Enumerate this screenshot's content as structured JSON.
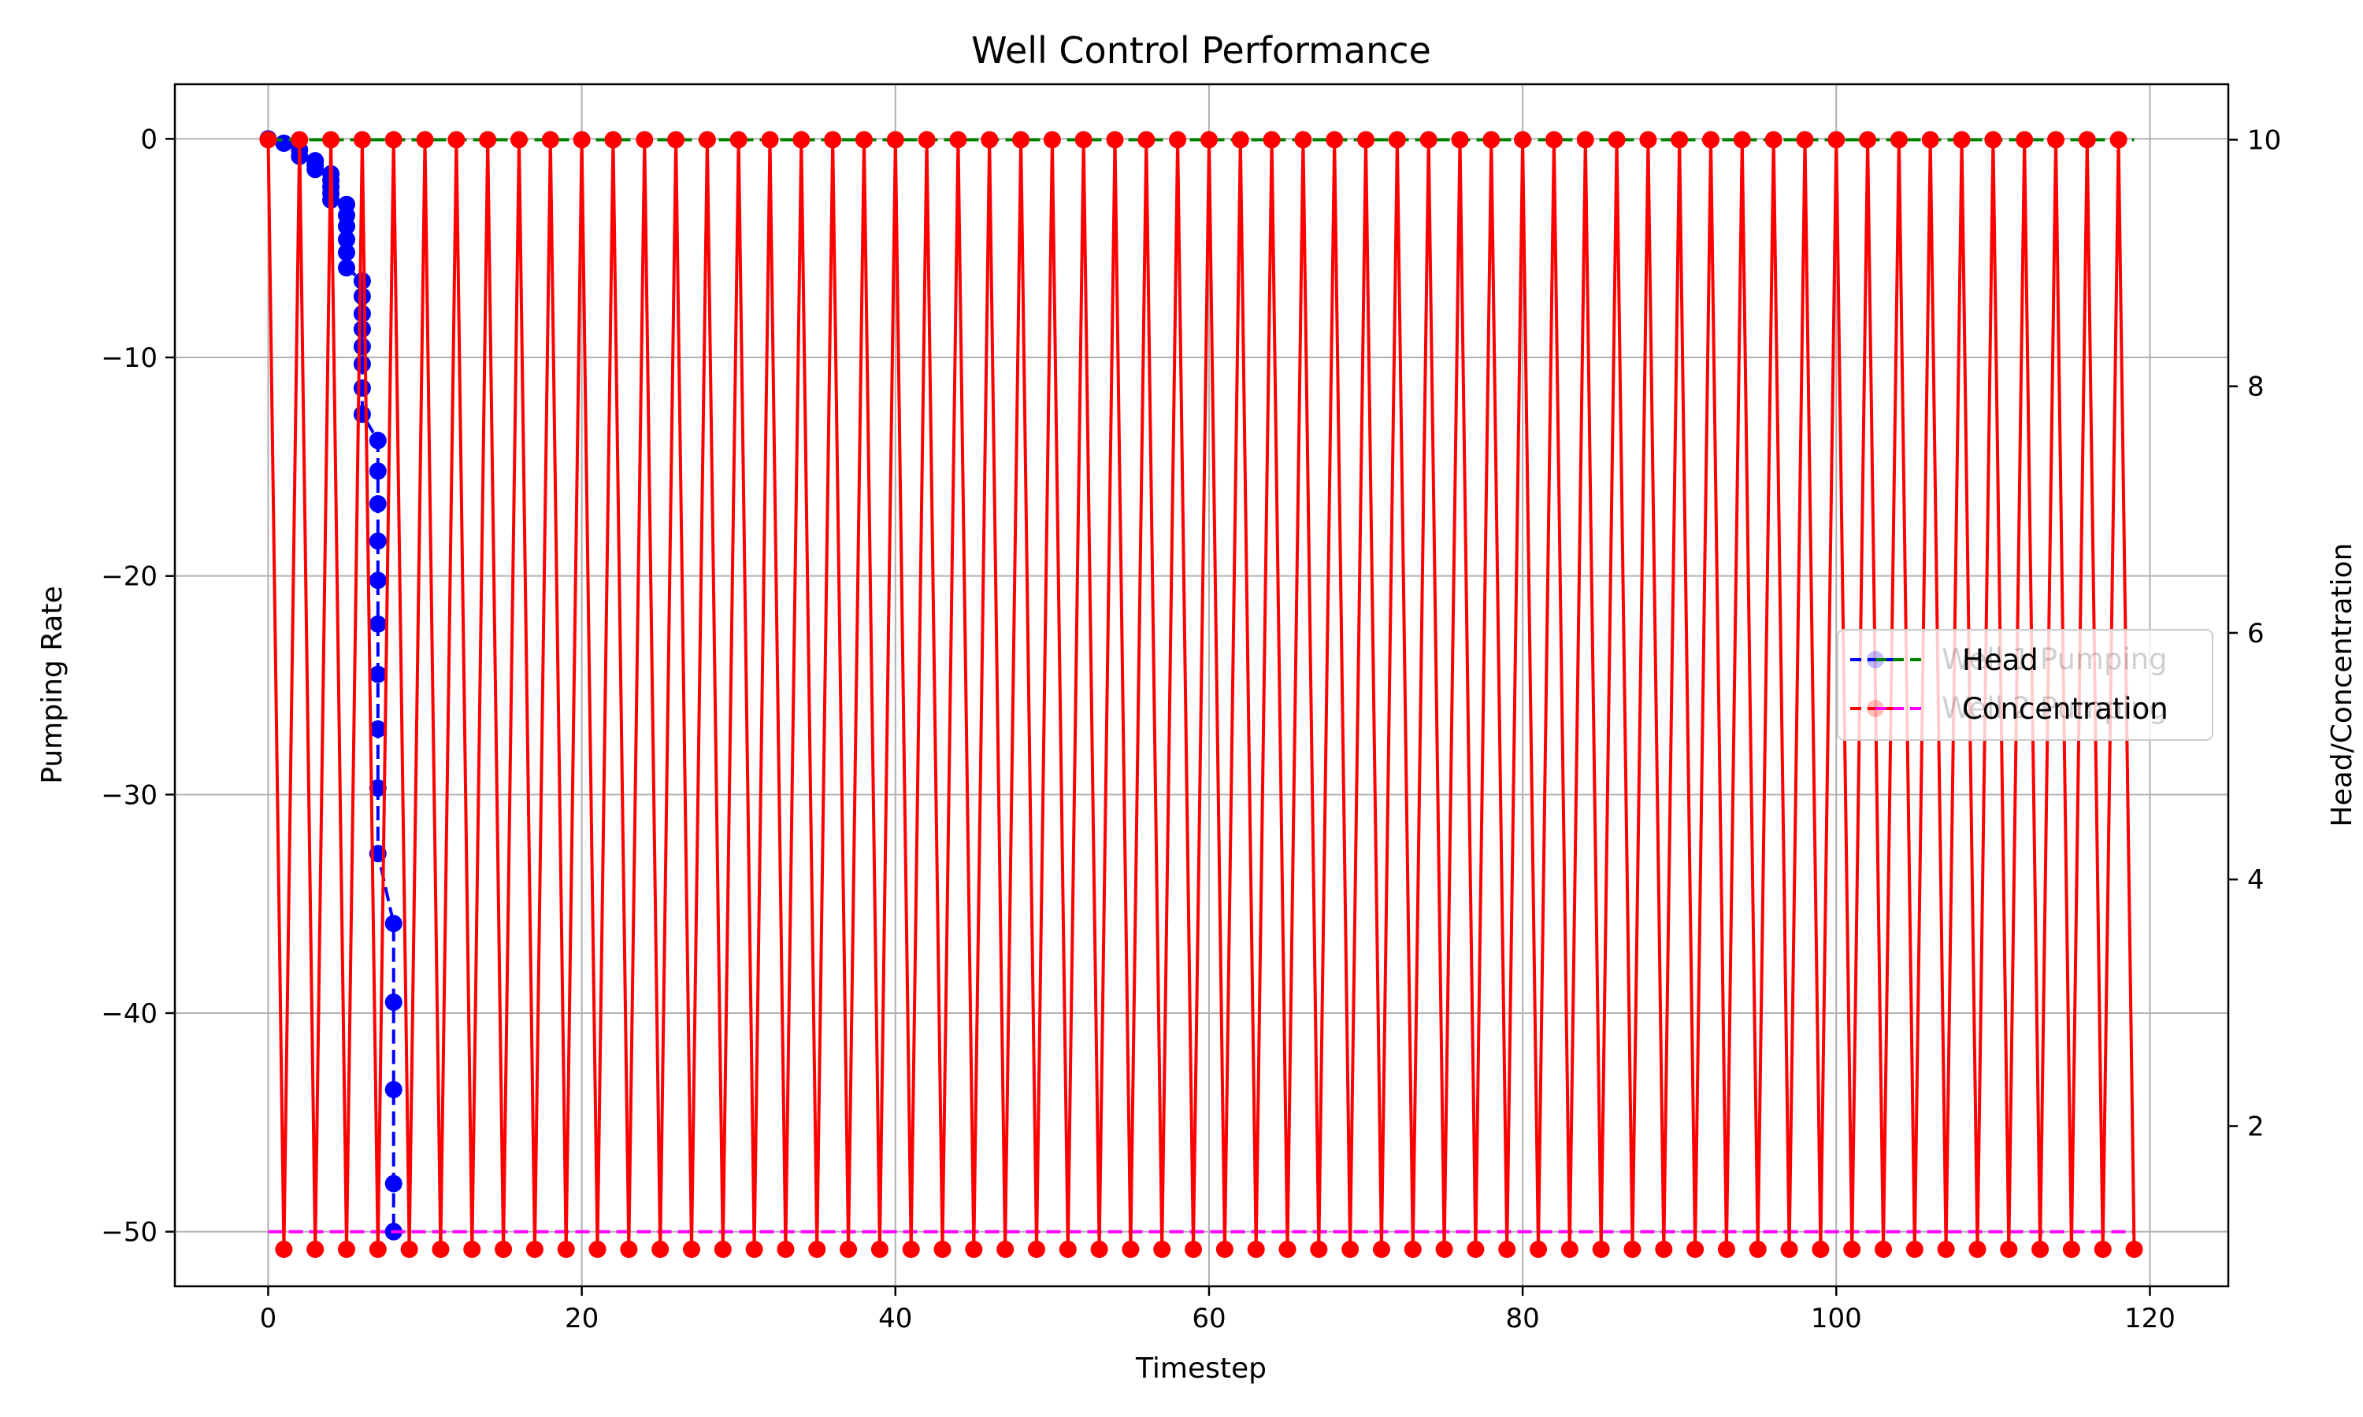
{
  "chart_data": {
    "type": "line",
    "title": "Well Control Performance",
    "xlabel": "Timestep",
    "ylabel": "Pumping Rate",
    "y2label": "Head/Concentration",
    "xlim": [
      -5.95,
      125.0
    ],
    "ylim": [
      -52.5,
      2.5
    ],
    "y2lim": [
      0.7,
      10.45
    ],
    "xticks": [
      0,
      20,
      40,
      60,
      80,
      100,
      120
    ],
    "yticks": [
      0,
      -10,
      -20,
      -30,
      -40,
      -50
    ],
    "y2ticks": [
      10,
      8,
      6,
      4,
      2
    ],
    "grid": true,
    "legend_position": "center-right",
    "x_range": [
      0,
      119
    ],
    "series": [
      {
        "name": "Well 1 Pumping",
        "axis": "left",
        "color": "#0000ff",
        "style": "dashed-markers",
        "x": [
          0,
          1,
          2,
          2,
          3,
          3,
          3,
          4,
          4,
          4,
          4,
          4,
          5,
          5,
          5,
          5,
          5,
          5,
          6,
          6,
          6,
          6,
          6,
          6,
          6,
          6,
          7,
          7,
          7,
          7,
          7,
          7,
          7,
          7,
          7,
          7,
          8,
          8,
          8,
          8,
          8,
          8,
          8
        ],
        "values": [
          0,
          -0.2,
          -0.5,
          -0.8,
          -1.0,
          -1.2,
          -1.4,
          -1.6,
          -1.9,
          -2.2,
          -2.5,
          -2.8,
          -3.0,
          -3.5,
          -4.0,
          -4.6,
          -5.2,
          -5.9,
          -6.5,
          -7.2,
          -8.0,
          -8.7,
          -9.5,
          -10.3,
          -11.4,
          -12.6,
          -13.8,
          -15.2,
          -16.7,
          -18.4,
          -20.2,
          -22.2,
          -24.5,
          -27.0,
          -29.7,
          -32.7,
          -35.9,
          -39.5,
          -43.5,
          -47.8,
          -50,
          -50,
          -50
        ]
      },
      {
        "name": "Well 2 Pumping",
        "axis": "left",
        "color": "#ff00ff",
        "style": "dashed",
        "values_note_free": true,
        "x": [
          0,
          119
        ],
        "values": [
          -50,
          -50
        ]
      },
      {
        "name": "Head",
        "axis": "right",
        "color": "#008000",
        "style": "dashed",
        "x": [
          0,
          119
        ],
        "values": [
          10,
          10
        ]
      },
      {
        "name": "Concentration",
        "axis": "right",
        "color": "#ff0000",
        "style": "solid-markers",
        "pattern": "alternating",
        "x_step": 1,
        "values_even": 10,
        "values_odd": 1
      }
    ],
    "legend": [
      {
        "label": "Head",
        "color": "#0000ff",
        "color2": "#008000"
      },
      {
        "label": "Concentration",
        "color": "#ff0000",
        "color2": "#ff00ff"
      }
    ],
    "legend_overlap": [
      "Well 1 Pumping",
      "Well 2 Pumping"
    ]
  }
}
